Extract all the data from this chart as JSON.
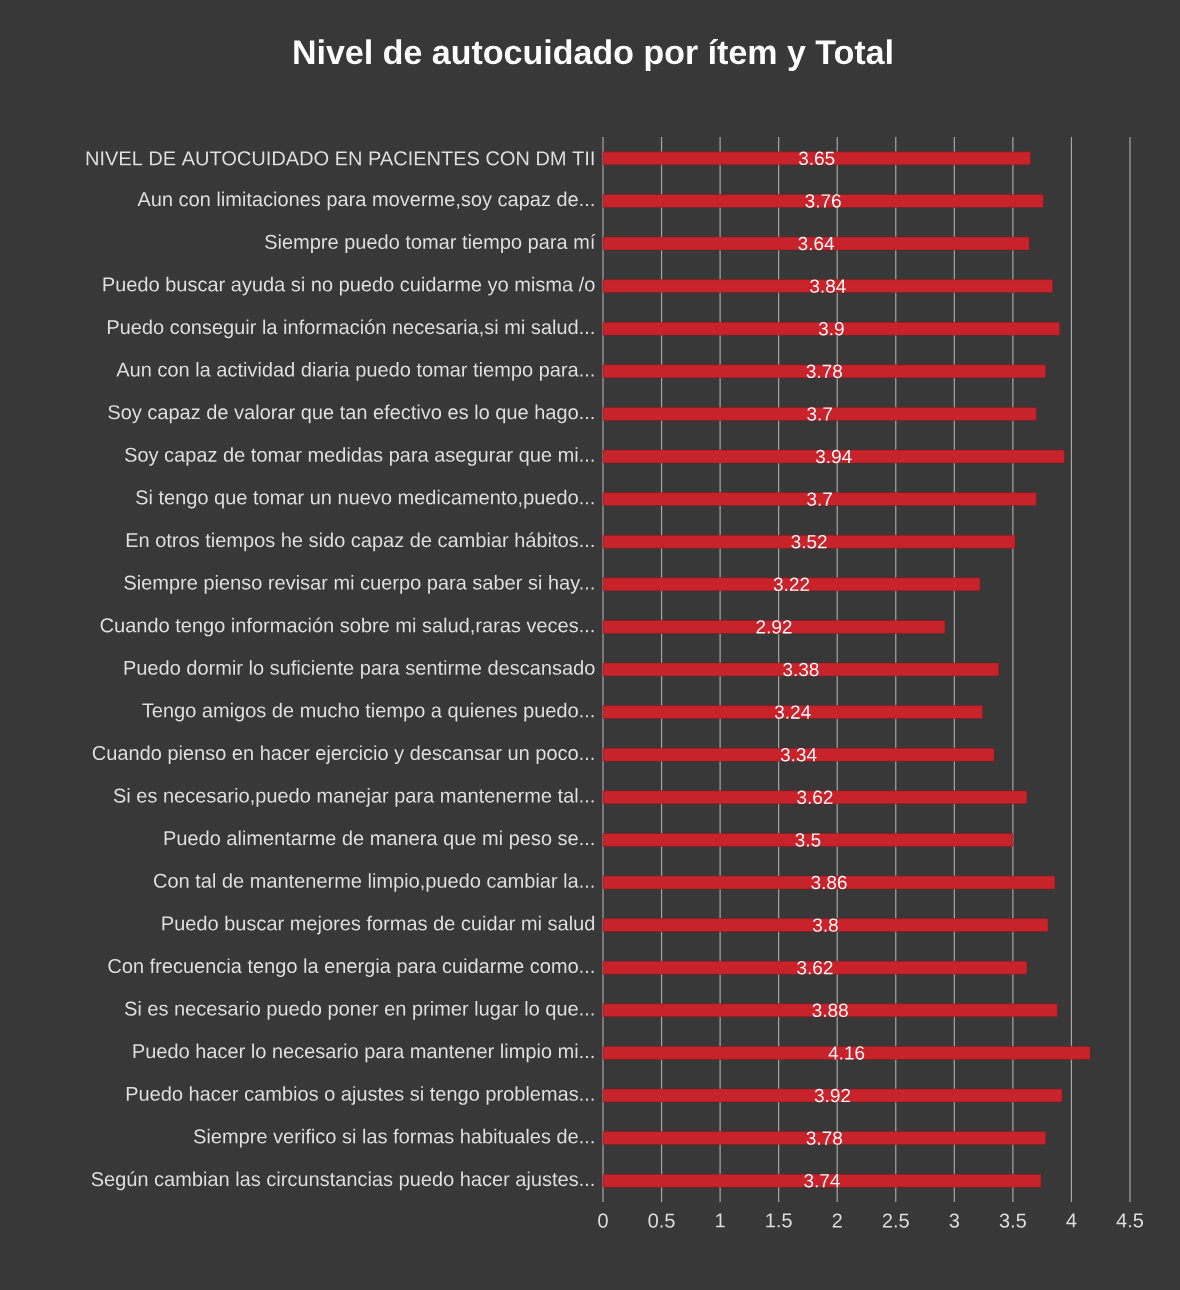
{
  "chart_data": {
    "type": "bar",
    "orientation": "horizontal",
    "title": "Nivel de autocuidado por ítem y Total",
    "categories": [
      "NIVEL DE AUTOCUIDADO EN PACIENTES CON DM TII",
      "Aun con limitaciones para moverme,soy capaz de...",
      "Siempre puedo tomar tiempo para mí",
      "Puedo buscar ayuda si no puedo cuidarme yo misma /o",
      "Puedo conseguir la información necesaria,si mi salud...",
      "Aun con la actividad diaria puedo tomar tiempo para...",
      "Soy capaz de valorar que tan efectivo es lo que hago...",
      "Soy capaz de tomar medidas para asegurar que mi...",
      "Si tengo que tomar un nuevo medicamento,puedo...",
      "En otros tiempos he sido capaz de cambiar hábitos...",
      "Siempre pienso revisar mi cuerpo para saber si hay...",
      "Cuando tengo información sobre mi salud,raras veces...",
      "Puedo dormir lo suficiente para sentirme descansado",
      "Tengo amigos de mucho tiempo a quienes puedo...",
      "Cuando pienso en hacer ejercicio y descansar un poco...",
      "Si es necesario,puedo manejar para mantenerme tal...",
      "Puedo alimentarme de manera que mi peso se...",
      "Con tal de mantenerme limpio,puedo cambiar la...",
      "Puedo buscar mejores formas de cuidar mi salud",
      "Con frecuencia tengo la energia para cuidarme como...",
      "Si es necesario puedo poner en primer lugar lo que...",
      "Puedo hacer lo necesario para mantener limpio mi...",
      "Puedo hacer cambios o ajustes si tengo problemas...",
      "Siempre verifico si las formas habituales de...",
      "Según cambian las circunstancias puedo hacer ajustes..."
    ],
    "values": [
      3.65,
      3.76,
      3.64,
      3.84,
      3.9,
      3.78,
      3.7,
      3.94,
      3.7,
      3.52,
      3.22,
      2.92,
      3.38,
      3.24,
      3.34,
      3.62,
      3.5,
      3.86,
      3.8,
      3.62,
      3.88,
      4.16,
      3.92,
      3.78,
      3.74
    ],
    "color": "#c8232b",
    "xlim": [
      0,
      4.5
    ],
    "xticks": [
      0,
      0.5,
      1,
      1.5,
      2,
      2.5,
      3,
      3.5,
      4,
      4.5
    ],
    "grid": "x",
    "data_labels": true
  }
}
